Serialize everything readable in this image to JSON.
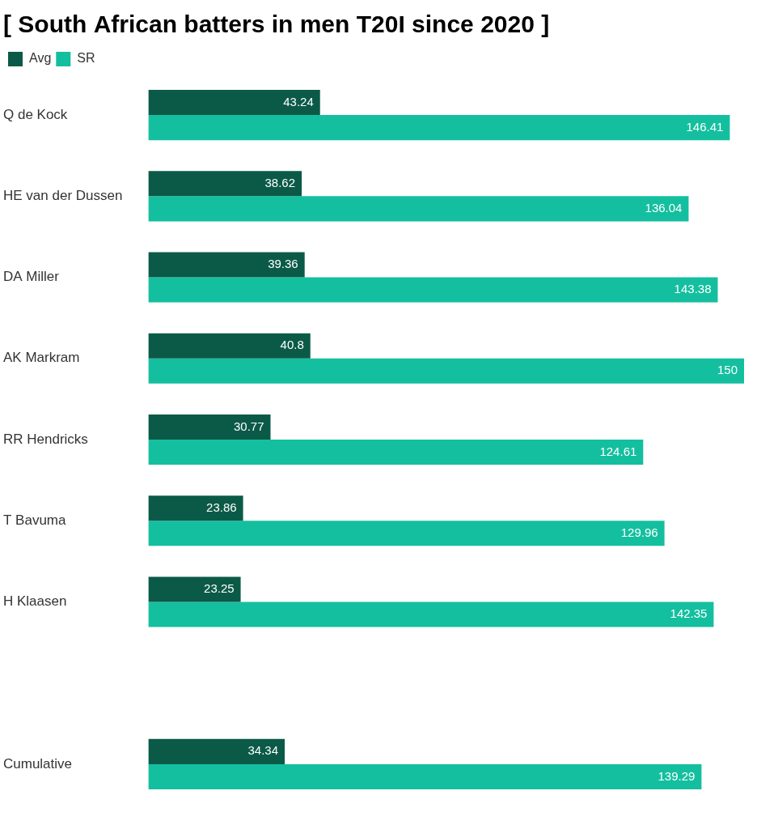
{
  "chart_data": {
    "type": "bar",
    "orientation": "horizontal",
    "title": "[ South African batters in men T20I since 2020 ]",
    "categories": [
      "Q de Kock",
      "HE van der Dussen",
      "DA Miller",
      "AK Markram",
      "RR Hendricks",
      "T Bavuma",
      "H Klaasen",
      null,
      "Cumulative"
    ],
    "series": [
      {
        "name": "Avg",
        "color": "#0b5a47",
        "values": [
          43.24,
          38.62,
          39.36,
          40.8,
          30.77,
          23.86,
          23.25,
          null,
          34.34
        ]
      },
      {
        "name": "SR",
        "color": "#14bf9f",
        "values": [
          146.41,
          136.04,
          143.38,
          150,
          124.61,
          129.96,
          142.35,
          null,
          139.29
        ]
      }
    ],
    "xlim": [
      0,
      150
    ],
    "grid": false,
    "legend": "top-left",
    "data_labels": true,
    "tick_labels": "y"
  }
}
